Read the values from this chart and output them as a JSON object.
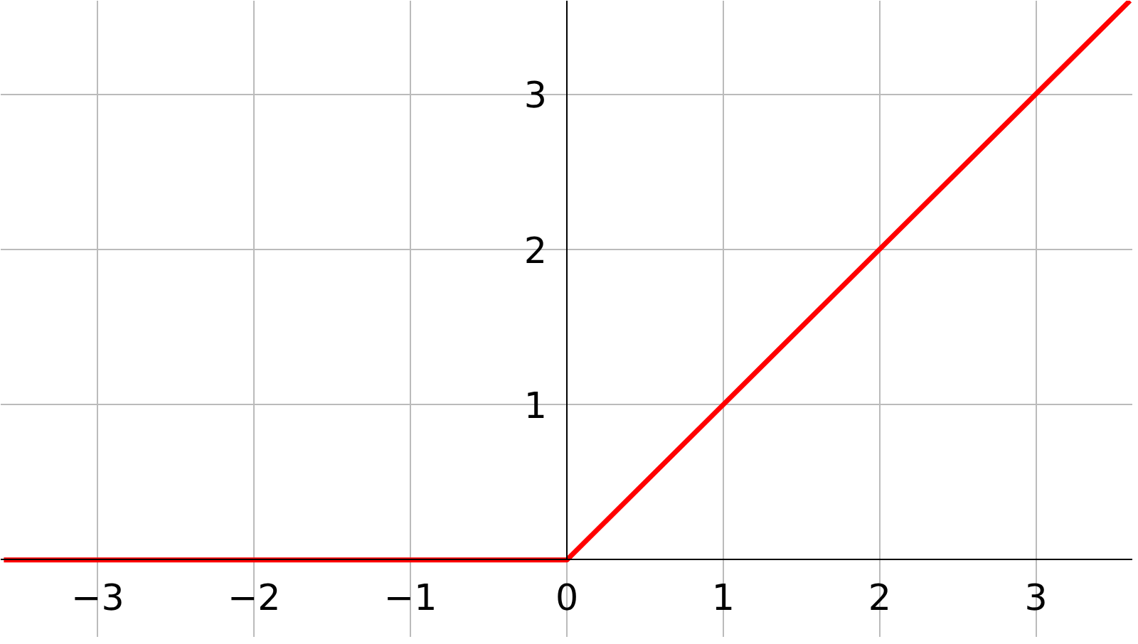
{
  "chart_data": {
    "type": "line",
    "x": [
      -3.6,
      0,
      3.6
    ],
    "series": [
      {
        "color": "#ff0000",
        "values": [
          0,
          0,
          3.6
        ]
      }
    ],
    "xlim": [
      -3.62,
      3.62
    ],
    "ylim": [
      -0.5,
      3.6
    ],
    "xticks": [
      {
        "value": -3,
        "label": "−3"
      },
      {
        "value": -2,
        "label": "−2"
      },
      {
        "value": -1,
        "label": "−1"
      },
      0,
      1,
      2,
      3
    ],
    "yticks": [
      1,
      2,
      3
    ],
    "grid": true,
    "line_style": "solid",
    "marker": "none"
  }
}
